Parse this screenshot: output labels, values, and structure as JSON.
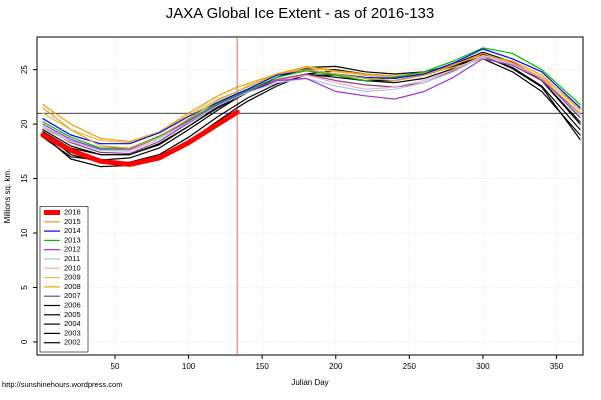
{
  "chart_data": {
    "type": "line",
    "title": "JAXA Global Ice Extent - as of 2016-133",
    "xlabel": "Julian Day",
    "ylabel": "Millions sq. km.",
    "footer": "http://sunshinehours.wordpress.com",
    "x": [
      1,
      20,
      40,
      60,
      80,
      100,
      120,
      133,
      140,
      160,
      180,
      200,
      220,
      240,
      260,
      280,
      300,
      320,
      340,
      366
    ],
    "xlim": [
      -3,
      368
    ],
    "xticks": [
      50,
      100,
      150,
      200,
      250,
      300,
      350
    ],
    "ylim": [
      -1.2,
      28
    ],
    "yticks": [
      0,
      5,
      10,
      15,
      20,
      25
    ],
    "hline": 21,
    "vline": 133,
    "grid": true,
    "legend": "bottomleft",
    "series": [
      {
        "name": "2016",
        "color": "#ff0000",
        "line_width": 5,
        "values": [
          19.0,
          17.6,
          16.6,
          16.3,
          16.9,
          18.3,
          20.0,
          21.1,
          null,
          null,
          null,
          null,
          null,
          null,
          null,
          null,
          null,
          null,
          null,
          null
        ]
      },
      {
        "name": "2015",
        "color": "#e0a030",
        "values": [
          21.5,
          19.5,
          18.0,
          17.8,
          18.8,
          20.5,
          22.2,
          23.0,
          23.4,
          24.6,
          25.0,
          24.6,
          24.2,
          24.0,
          24.5,
          25.4,
          26.5,
          25.6,
          24.2,
          21.0
        ]
      },
      {
        "name": "2014",
        "color": "#0000ff",
        "values": [
          20.5,
          19.0,
          18.2,
          18.2,
          19.2,
          20.7,
          22.0,
          22.8,
          23.2,
          24.5,
          25.0,
          24.6,
          24.3,
          24.2,
          24.6,
          25.6,
          26.9,
          26.0,
          24.8,
          21.5
        ]
      },
      {
        "name": "2013",
        "color": "#00c000",
        "values": [
          20.2,
          18.8,
          17.8,
          17.8,
          18.9,
          20.4,
          21.9,
          22.7,
          23.1,
          24.3,
          24.9,
          24.5,
          24.0,
          24.3,
          24.8,
          25.8,
          27.0,
          26.5,
          25.0,
          21.8
        ]
      },
      {
        "name": "2012",
        "color": "#a030d0",
        "values": [
          20.0,
          18.6,
          17.7,
          17.7,
          18.8,
          20.3,
          21.8,
          22.6,
          23.1,
          24.0,
          24.2,
          23.0,
          22.6,
          22.3,
          23.0,
          24.3,
          26.0,
          25.4,
          24.0,
          21.0
        ]
      },
      {
        "name": "2011",
        "color": "#a8c8f0",
        "values": [
          19.8,
          18.5,
          17.6,
          17.5,
          18.6,
          20.2,
          21.7,
          22.5,
          22.9,
          23.8,
          24.2,
          23.5,
          23.0,
          23.2,
          23.8,
          24.8,
          26.2,
          25.5,
          24.2,
          20.8
        ]
      },
      {
        "name": "2010",
        "color": "#f0b0b0",
        "values": [
          19.6,
          18.4,
          17.6,
          17.6,
          18.8,
          20.4,
          21.9,
          22.7,
          23.1,
          24.0,
          24.5,
          23.8,
          23.2,
          23.4,
          24.0,
          25.0,
          26.3,
          25.6,
          24.3,
          20.9
        ]
      },
      {
        "name": "2009",
        "color": "#e8c040",
        "values": [
          21.0,
          19.5,
          18.5,
          18.3,
          19.3,
          20.8,
          22.3,
          23.0,
          23.5,
          24.5,
          25.2,
          24.8,
          24.5,
          24.3,
          24.6,
          25.2,
          26.0,
          25.5,
          24.3,
          21.6
        ]
      },
      {
        "name": "2008",
        "color": "#f0a000",
        "values": [
          21.8,
          20.0,
          18.7,
          18.4,
          19.3,
          21.0,
          22.6,
          23.4,
          23.7,
          24.6,
          25.3,
          24.9,
          24.6,
          24.4,
          24.7,
          25.5,
          26.3,
          25.8,
          24.5,
          21.3
        ]
      },
      {
        "name": "2007",
        "color": "#8b3a8b",
        "values": [
          19.8,
          18.3,
          17.4,
          17.3,
          18.4,
          20.1,
          21.7,
          22.6,
          23.0,
          24.1,
          24.6,
          24.0,
          23.6,
          23.4,
          23.8,
          24.9,
          26.3,
          25.7,
          24.2,
          20.6
        ]
      },
      {
        "name": "2006",
        "color": "#000000",
        "values": [
          19.5,
          18.0,
          17.2,
          17.2,
          18.2,
          19.8,
          21.5,
          22.4,
          22.9,
          24.0,
          24.6,
          24.3,
          24.0,
          23.8,
          24.2,
          25.1,
          26.4,
          25.6,
          24.0,
          20.0
        ]
      },
      {
        "name": "2005",
        "color": "#000000",
        "values": [
          19.3,
          17.2,
          16.5,
          16.5,
          17.2,
          18.8,
          20.7,
          21.8,
          22.4,
          23.7,
          24.5,
          24.5,
          24.0,
          24.0,
          24.5,
          25.3,
          26.2,
          25.2,
          23.5,
          19.5
        ]
      },
      {
        "name": "2004",
        "color": "#000000",
        "values": [
          19.0,
          16.8,
          16.1,
          16.2,
          16.9,
          18.4,
          20.3,
          21.5,
          22.1,
          23.5,
          24.6,
          24.9,
          24.5,
          24.3,
          24.6,
          25.3,
          26.0,
          24.8,
          23.0,
          19.0
        ]
      },
      {
        "name": "2003",
        "color": "#000000",
        "values": [
          18.8,
          17.0,
          16.7,
          16.9,
          17.8,
          19.5,
          21.3,
          22.4,
          22.9,
          24.3,
          25.2,
          25.3,
          24.8,
          24.6,
          24.8,
          25.4,
          26.3,
          25.1,
          23.4,
          18.6
        ]
      },
      {
        "name": "2002",
        "color": "#000000",
        "values": [
          19.3,
          17.8,
          17.2,
          17.2,
          18.1,
          19.8,
          21.6,
          22.5,
          23.0,
          24.3,
          25.1,
          25.0,
          24.6,
          24.4,
          24.7,
          25.5,
          26.6,
          25.7,
          24.0,
          20.2
        ]
      }
    ]
  }
}
